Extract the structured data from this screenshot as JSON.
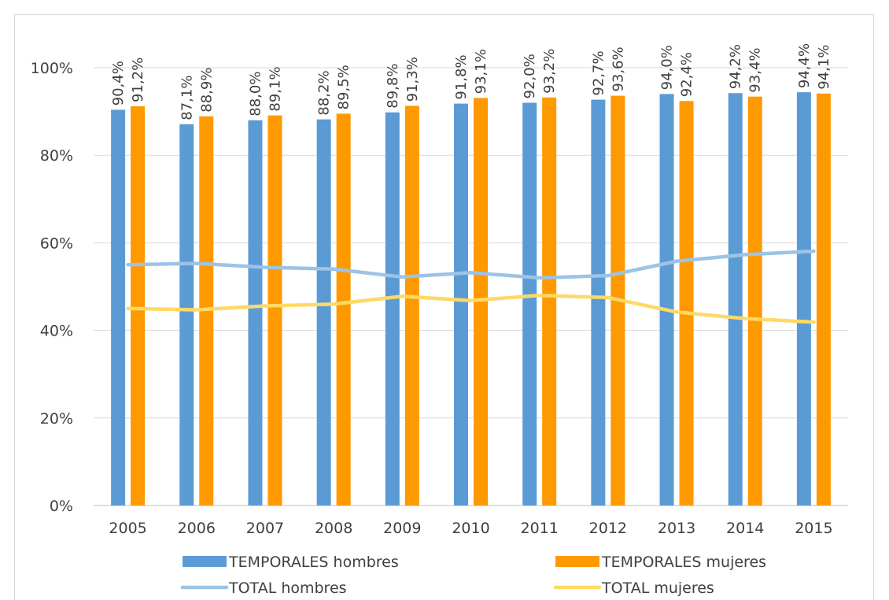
{
  "chart_data": {
    "type": "bar",
    "categories": [
      "2005",
      "2006",
      "2007",
      "2008",
      "2009",
      "2010",
      "2011",
      "2012",
      "2013",
      "2014",
      "2015"
    ],
    "y_ticks": [
      "0%",
      "20%",
      "40%",
      "60%",
      "80%",
      "100%"
    ],
    "ylim": [
      0,
      100
    ],
    "grid": true,
    "legend_position": "bottom",
    "bar_series": [
      {
        "name": "TEMPORALES hombres",
        "color": "#5b9bd5",
        "values": [
          90.4,
          87.1,
          88.0,
          88.2,
          89.8,
          91.8,
          92.0,
          92.7,
          94.0,
          94.2,
          94.4
        ],
        "labels": [
          "90,4%",
          "87,1%",
          "88,0%",
          "88,2%",
          "89,8%",
          "91,8%",
          "92,0%",
          "92,7%",
          "94,0%",
          "94,2%",
          "94,4%"
        ]
      },
      {
        "name": "TEMPORALES mujeres",
        "color": "#ff9900",
        "values": [
          91.2,
          88.9,
          89.1,
          89.5,
          91.3,
          93.1,
          93.2,
          93.6,
          92.4,
          93.4,
          94.1
        ],
        "labels": [
          "91,2%",
          "88,9%",
          "89,1%",
          "89,5%",
          "91,3%",
          "93,1%",
          "93,2%",
          "93,6%",
          "92,4%",
          "93,4%",
          "94,1%"
        ]
      }
    ],
    "line_series": [
      {
        "name": "TOTAL hombres",
        "color": "#9dc3e6",
        "values": [
          55.0,
          55.3,
          54.4,
          54.0,
          52.2,
          53.2,
          52.0,
          52.5,
          55.8,
          57.3,
          58.1
        ]
      },
      {
        "name": "TOTAL mujeres",
        "color": "#ffd966",
        "values": [
          45.0,
          44.7,
          45.6,
          46.0,
          47.8,
          46.8,
          48.0,
          47.5,
          44.2,
          42.7,
          41.9
        ]
      }
    ]
  }
}
